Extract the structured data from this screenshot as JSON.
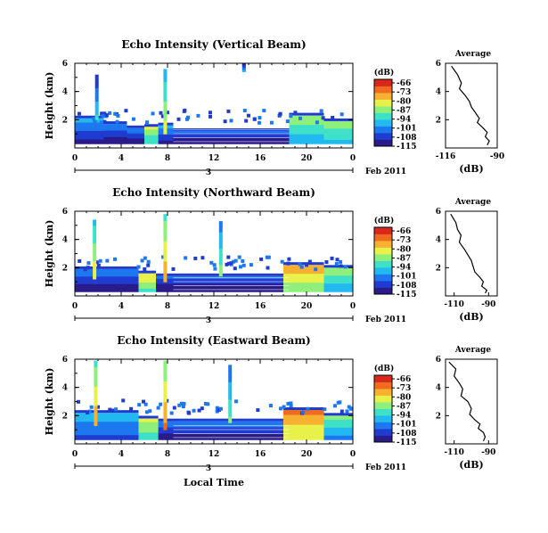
{
  "colors": {
    "colormap": [
      "#2a1a8a",
      "#1f3bd0",
      "#1d78f0",
      "#22b8f0",
      "#3ee0c8",
      "#8ef07a",
      "#e8f04a",
      "#f8b030",
      "#f06a20",
      "#d8281c"
    ]
  },
  "chart_data": [
    {
      "type": "heatmap",
      "title": "Echo Intensity (Vertical Beam)",
      "ylabel": "Height (km)",
      "ytick_labels": [
        "6",
        "4",
        "2"
      ],
      "xtick_labels": [
        "0",
        "4",
        "8",
        "12",
        "16",
        "20",
        "0"
      ],
      "xlim": [
        0,
        24
      ],
      "ylim": [
        0,
        6
      ],
      "date_label": "3",
      "date_suffix": "Feb 2011",
      "colorbar": {
        "unit": "(dB)",
        "levels": [
          -66,
          -73,
          -80,
          -87,
          -94,
          -101,
          -108,
          -115
        ]
      },
      "average_profile": {
        "title": "Average",
        "xlabel": "(dB)",
        "xtick_labels": [
          "-116",
          "-90"
        ],
        "xlim": [
          -116,
          -90
        ],
        "ytick_labels": [
          "6",
          "4",
          "2"
        ],
        "x_db": [
          -113,
          -110,
          -108,
          -109,
          -106,
          -104,
          -103,
          -101,
          -99,
          -100,
          -97,
          -95,
          -96,
          -94,
          -95
        ],
        "y_km": [
          5.8,
          5.2,
          4.6,
          4.2,
          3.7,
          3.3,
          2.9,
          2.5,
          2.1,
          1.8,
          1.4,
          1.1,
          0.8,
          0.5,
          0.2
        ]
      },
      "echo_top_km": 1.9,
      "echo_cells": [
        {
          "t0": 0.0,
          "t1": 2.5,
          "h0": 0.3,
          "h1": 2.1,
          "db": -101
        },
        {
          "t0": 2.5,
          "t1": 4.5,
          "h0": 0.3,
          "h1": 1.7,
          "db": -104
        },
        {
          "t0": 4.5,
          "t1": 6.0,
          "h0": 0.3,
          "h1": 1.4,
          "db": -103
        },
        {
          "t0": 6.0,
          "t1": 7.2,
          "h0": 0.3,
          "h1": 1.5,
          "db": -84
        },
        {
          "t0": 7.2,
          "t1": 8.5,
          "h0": 0.3,
          "h1": 1.6,
          "db": -101
        },
        {
          "t0": 8.5,
          "t1": 18.5,
          "h0": 0.3,
          "h1": 1.2,
          "db": -106
        },
        {
          "t0": 18.5,
          "t1": 21.5,
          "h0": 0.3,
          "h1": 2.3,
          "db": -88
        },
        {
          "t0": 21.5,
          "t1": 24.0,
          "h0": 0.3,
          "h1": 1.9,
          "db": -86
        }
      ],
      "echo_columns": [
        {
          "t": 7.8,
          "h0": 1.0,
          "h1": 5.6,
          "db": -98
        },
        {
          "t": 1.9,
          "h0": 2.0,
          "h1": 5.2,
          "db": -112
        },
        {
          "t": 14.6,
          "h0": 5.4,
          "h1": 6.0,
          "db": -115
        }
      ]
    },
    {
      "type": "heatmap",
      "title": "Echo Intensity (Northward Beam)",
      "ylabel": "Height (km)",
      "ytick_labels": [
        "6",
        "4",
        "2"
      ],
      "xtick_labels": [
        "0",
        "4",
        "8",
        "12",
        "16",
        "20",
        "0"
      ],
      "xlim": [
        0,
        24
      ],
      "ylim": [
        0,
        6
      ],
      "date_label": "3",
      "date_suffix": "Feb 2011",
      "colorbar": {
        "unit": "(dB)",
        "levels": [
          -66,
          -73,
          -80,
          -87,
          -94,
          -101,
          -108,
          -115
        ]
      },
      "average_profile": {
        "title": "Average",
        "xlabel": "(dB)",
        "xtick_labels": [
          "-110",
          "-90"
        ],
        "xlim": [
          -115,
          -85
        ],
        "ytick_labels": [
          "6",
          "4",
          "2"
        ],
        "x_db": [
          -112,
          -109,
          -108,
          -106,
          -107,
          -104,
          -102,
          -100,
          -99,
          -98,
          -95,
          -93,
          -94,
          -91,
          -92
        ],
        "y_km": [
          5.8,
          5.2,
          4.7,
          4.3,
          3.8,
          3.3,
          2.9,
          2.5,
          2.1,
          1.7,
          1.3,
          1.0,
          0.7,
          0.4,
          0.2
        ]
      },
      "echo_top_km": 2.0,
      "echo_cells": [
        {
          "t0": 0.0,
          "t1": 5.5,
          "h0": 0.3,
          "h1": 1.9,
          "db": -104
        },
        {
          "t0": 5.5,
          "t1": 7.0,
          "h0": 0.3,
          "h1": 1.6,
          "db": -80
        },
        {
          "t0": 7.0,
          "t1": 18.0,
          "h0": 0.3,
          "h1": 1.4,
          "db": -106
        },
        {
          "t0": 18.0,
          "t1": 21.5,
          "h0": 0.3,
          "h1": 2.2,
          "db": -76
        },
        {
          "t0": 21.5,
          "t1": 24.0,
          "h0": 0.3,
          "h1": 2.0,
          "db": -88
        }
      ],
      "echo_columns": [
        {
          "t": 1.7,
          "h0": 1.2,
          "h1": 5.4,
          "db": -96
        },
        {
          "t": 7.8,
          "h0": 1.0,
          "h1": 5.8,
          "db": -92
        },
        {
          "t": 12.6,
          "h0": 1.4,
          "h1": 5.3,
          "db": -104
        }
      ]
    },
    {
      "type": "heatmap",
      "title": "Echo Intensity (Eastward Beam)",
      "ylabel": "Height (km)",
      "ytick_labels": [
        "6",
        "4",
        "2"
      ],
      "xtick_labels": [
        "0",
        "4",
        "8",
        "12",
        "16",
        "20",
        "0"
      ],
      "xlim": [
        0,
        24
      ],
      "ylim": [
        0,
        6
      ],
      "date_label": "3",
      "date_suffix": "Feb 2011",
      "xlabel": "Local Time",
      "colorbar": {
        "unit": "(dB)",
        "levels": [
          -66,
          -73,
          -80,
          -87,
          -94,
          -101,
          -108,
          -115
        ]
      },
      "average_profile": {
        "title": "Average",
        "xlabel": "(dB)",
        "xtick_labels": [
          "-110",
          "-90"
        ],
        "xlim": [
          -115,
          -85
        ],
        "ytick_labels": [
          "6",
          "4",
          "2"
        ],
        "x_db": [
          -113,
          -109,
          -110,
          -107,
          -105,
          -106,
          -102,
          -100,
          -101,
          -98,
          -95,
          -96,
          -93,
          -92,
          -93
        ],
        "y_km": [
          5.8,
          5.3,
          4.8,
          4.3,
          3.9,
          3.4,
          3.0,
          2.5,
          2.1,
          1.7,
          1.4,
          1.1,
          0.8,
          0.5,
          0.2
        ]
      },
      "echo_top_km": 2.3,
      "echo_cells": [
        {
          "t0": 0.0,
          "t1": 5.5,
          "h0": 0.3,
          "h1": 2.2,
          "db": -97
        },
        {
          "t0": 5.5,
          "t1": 7.2,
          "h0": 0.3,
          "h1": 1.8,
          "db": -83
        },
        {
          "t0": 7.2,
          "t1": 18.0,
          "h0": 0.3,
          "h1": 1.6,
          "db": -103
        },
        {
          "t0": 18.0,
          "t1": 21.5,
          "h0": 0.3,
          "h1": 2.4,
          "db": -73
        },
        {
          "t0": 21.5,
          "t1": 24.0,
          "h0": 0.3,
          "h1": 2.0,
          "db": -90
        }
      ],
      "echo_columns": [
        {
          "t": 1.8,
          "h0": 1.3,
          "h1": 5.9,
          "db": -92
        },
        {
          "t": 7.8,
          "h0": 1.0,
          "h1": 5.9,
          "db": -90
        },
        {
          "t": 13.4,
          "h0": 1.5,
          "h1": 5.6,
          "db": -106
        }
      ]
    }
  ]
}
